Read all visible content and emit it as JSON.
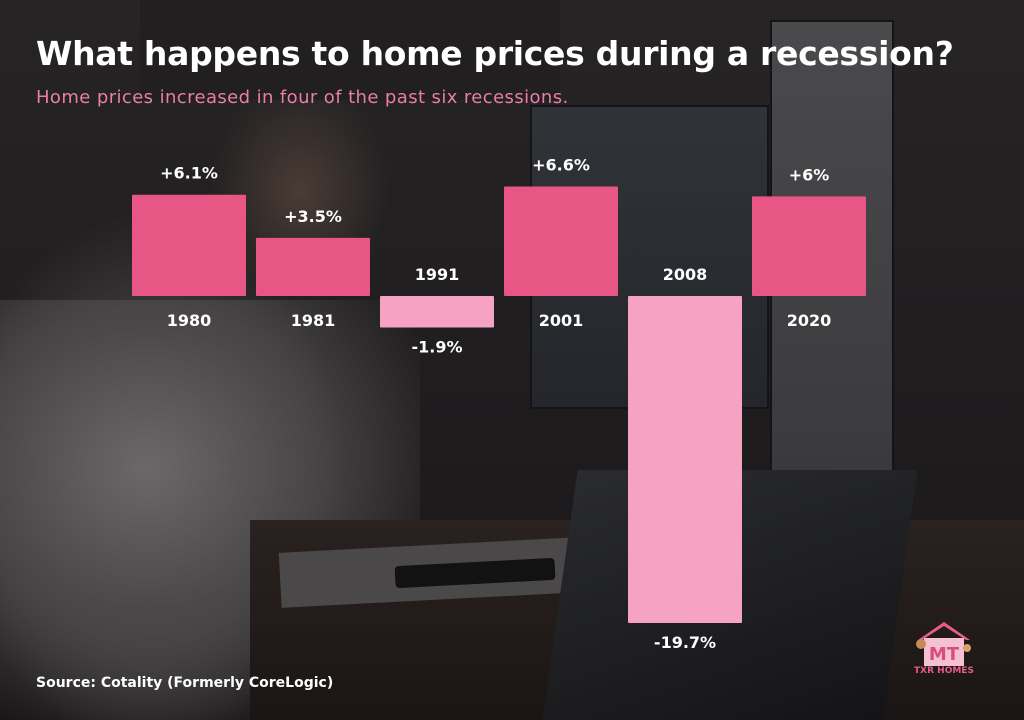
{
  "header": {
    "title": "What happens to home prices during a recession?",
    "subtitle": "Home prices increased in four of the past six recessions."
  },
  "footer": {
    "source": "Source: Cotality (Formerly CoreLogic)"
  },
  "logo": {
    "icon": "house-family-logo-icon",
    "text": "TXR HOMES"
  },
  "colors": {
    "positive_bar": "#e85686",
    "negative_bar": "#f6a3c3",
    "subtitle": "#e87fa6",
    "text": "#ffffff"
  },
  "chart_data": {
    "type": "bar",
    "categories": [
      "1980",
      "1981",
      "1991",
      "2001",
      "2008",
      "2020"
    ],
    "values": [
      6.1,
      3.5,
      -1.9,
      6.6,
      -19.7,
      6
    ],
    "value_labels": [
      "+6.1%",
      "+3.5%",
      "-1.9%",
      "+6.6%",
      "-19.7%",
      "+6%"
    ],
    "title": "What happens to home prices during a recession?",
    "subtitle": "Home prices increased in four of the past six recessions.",
    "ylabel": "",
    "xlabel": "",
    "grid": false,
    "legend": "none"
  }
}
